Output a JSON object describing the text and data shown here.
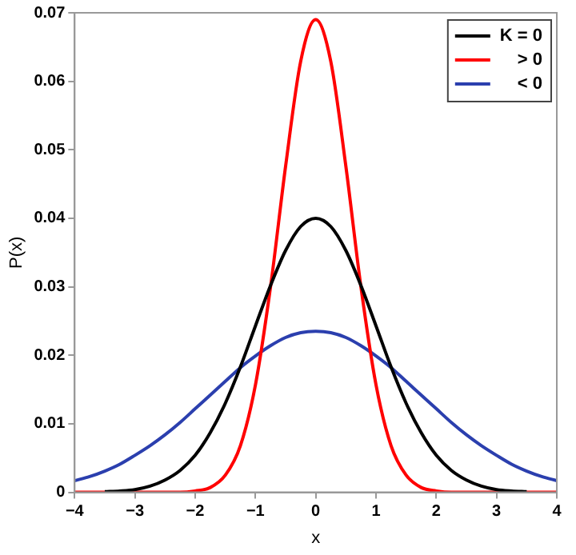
{
  "chart_data": {
    "type": "line",
    "xlabel": "x",
    "ylabel": "P(x)",
    "x": [
      -4,
      -3.75,
      -3.5,
      -3.25,
      -3,
      -2.75,
      -2.5,
      -2.25,
      -2,
      -1.75,
      -1.5,
      -1.25,
      -1,
      -0.75,
      -0.5,
      -0.25,
      0,
      0.25,
      0.5,
      0.75,
      1,
      1.25,
      1.5,
      1.75,
      2,
      2.25,
      2.5,
      2.75,
      3,
      3.25,
      3.5,
      3.75,
      4
    ],
    "series": [
      {
        "name": "K = 0",
        "color": "#000000",
        "values": [
          null,
          null,
          0.0001,
          0.0002,
          0.0004,
          0.0009,
          0.0018,
          0.0032,
          0.0054,
          0.0087,
          0.013,
          0.0183,
          0.0243,
          0.0302,
          0.0353,
          0.0388,
          0.04,
          0.0388,
          0.0353,
          0.0302,
          0.0243,
          0.0183,
          0.013,
          0.0087,
          0.0054,
          0.0032,
          0.0018,
          0.0009,
          0.0004,
          0.0002,
          0.0001,
          null,
          null
        ]
      },
      {
        "name": "> 0",
        "color": "#ff0000",
        "values": [
          0,
          0,
          0,
          0,
          0,
          0,
          0,
          0,
          0.0002,
          0.0007,
          0.0025,
          0.0068,
          0.0157,
          0.03,
          0.0476,
          0.0629,
          0.069,
          0.0629,
          0.0476,
          0.03,
          0.0157,
          0.0068,
          0.0025,
          0.0007,
          0.0002,
          0,
          0,
          0,
          0,
          0,
          0,
          0,
          0
        ]
      },
      {
        "name": "< 0",
        "color": "#2b3fae",
        "values": [
          0.0017,
          0.0023,
          0.0031,
          0.0041,
          0.0054,
          0.0068,
          0.0084,
          0.0102,
          0.0122,
          0.0142,
          0.0162,
          0.0182,
          0.0199,
          0.0214,
          0.0226,
          0.0233,
          0.0235,
          0.0233,
          0.0226,
          0.0214,
          0.0199,
          0.0182,
          0.0162,
          0.0142,
          0.0122,
          0.0102,
          0.0084,
          0.0068,
          0.0054,
          0.0041,
          0.0031,
          0.0023,
          0.0017
        ]
      }
    ],
    "xlim": [
      -4,
      4
    ],
    "xticks": [
      {
        "value": -4,
        "label": "−4"
      },
      {
        "value": -3,
        "label": "−3"
      },
      {
        "value": -2,
        "label": "−2"
      },
      {
        "value": -1,
        "label": "−1"
      },
      0,
      1,
      2,
      3,
      4
    ],
    "ylim": [
      0,
      0.07
    ],
    "yticks": [
      0,
      0.01,
      0.02,
      0.03,
      0.04,
      0.05,
      0.06,
      0.07
    ],
    "grid": false,
    "legend": "top right",
    "marker": "none",
    "line_style": "solid"
  }
}
